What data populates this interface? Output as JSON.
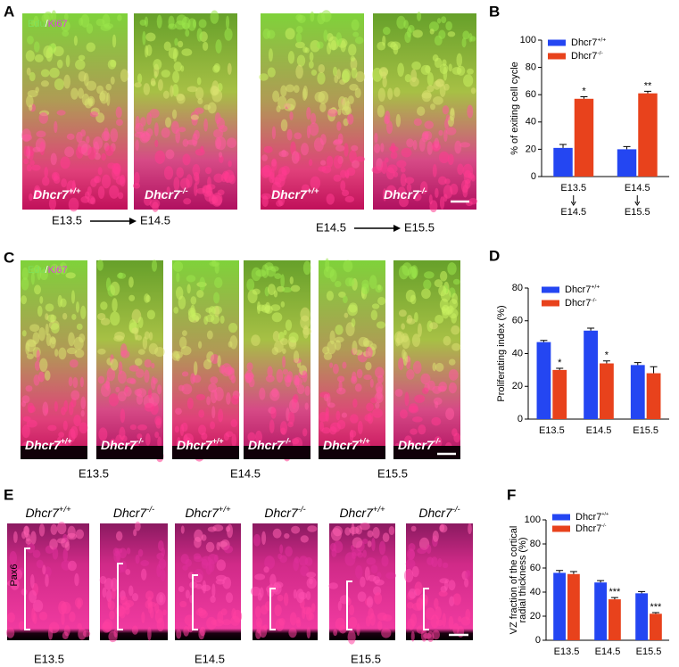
{
  "panels": {
    "A": {
      "label": "A",
      "stain": {
        "a": "Edu",
        "sep": "/",
        "b": "Ki67"
      },
      "images": [
        {
          "name": "Dhcr7",
          "sup": "+/+"
        },
        {
          "name": "Dhcr7",
          "sup": "-/-"
        },
        {
          "name": "Dhcr7",
          "sup": "+/+"
        },
        {
          "name": "Dhcr7",
          "sup": "-/-"
        }
      ],
      "transitions": [
        {
          "from": "E13.5",
          "to": "E14.5"
        },
        {
          "from": "E14.5",
          "to": "E15.5"
        }
      ]
    },
    "B": {
      "label": "B"
    },
    "C": {
      "label": "C",
      "stain": {
        "a": "Edu",
        "sep": "/",
        "b": "Ki67"
      },
      "images": [
        {
          "name": "Dhcr7",
          "sup": "+/+"
        },
        {
          "name": "Dhcr7",
          "sup": "-/-"
        },
        {
          "name": "Dhcr7",
          "sup": "+/+"
        },
        {
          "name": "Dhcr7",
          "sup": "-/-"
        },
        {
          "name": "Dhcr7",
          "sup": "+/+"
        },
        {
          "name": "Dhcr7",
          "sup": "-/-"
        }
      ],
      "stages": [
        "E13.5",
        "E14.5",
        "E15.5"
      ]
    },
    "D": {
      "label": "D"
    },
    "E": {
      "label": "E",
      "stain": "Pax6",
      "images": [
        {
          "name": "Dhcr7",
          "sup": "+/+"
        },
        {
          "name": "Dhcr7",
          "sup": "-/-"
        },
        {
          "name": "Dhcr7",
          "sup": "+/+"
        },
        {
          "name": "Dhcr7",
          "sup": "-/-"
        },
        {
          "name": "Dhcr7",
          "sup": "+/+"
        },
        {
          "name": "Dhcr7",
          "sup": "-/-"
        }
      ],
      "stages": [
        "E13.5",
        "E14.5",
        "E15.5"
      ]
    },
    "F": {
      "label": "F"
    }
  },
  "chart_data": [
    {
      "type": "bar",
      "ylabel": [
        "% of exiting cell cycle"
      ],
      "categories": [
        "E13.5",
        "E14.5"
      ],
      "category_ends": [
        "E14.5",
        "E15.5"
      ],
      "ylim": [
        0,
        100
      ],
      "yticks": [
        0,
        20,
        40,
        60,
        80,
        100
      ],
      "series": [
        {
          "name": "Dhcr7",
          "name_sup": "+/+",
          "color": "#2446f2",
          "values": [
            21,
            20
          ],
          "errors": [
            2.5,
            2
          ]
        },
        {
          "name": "Dhcr7",
          "name_sup": "-/-",
          "color": "#e8421c",
          "values": [
            57,
            61
          ],
          "errors": [
            1.5,
            1.5
          ],
          "significance": [
            "*",
            "**"
          ]
        }
      ]
    },
    {
      "type": "bar",
      "ylabel": [
        "Proliferating index (%)"
      ],
      "categories": [
        "E13.5",
        "E14.5",
        "E15.5"
      ],
      "ylim": [
        0,
        80
      ],
      "yticks": [
        0,
        20,
        40,
        60,
        80
      ],
      "series": [
        {
          "name": "Dhcr7",
          "name_sup": "+/+",
          "color": "#2446f2",
          "values": [
            47,
            54,
            33
          ],
          "errors": [
            1,
            1.5,
            1.5
          ]
        },
        {
          "name": "Dhcr7",
          "name_sup": "-/-",
          "color": "#e8421c",
          "values": [
            30,
            34,
            28
          ],
          "errors": [
            1,
            1.5,
            4
          ],
          "significance": [
            "*",
            "*",
            null
          ]
        }
      ]
    },
    {
      "type": "bar",
      "ylabel": [
        "VZ fraction of the cortical",
        "radial thickness (%)"
      ],
      "categories": [
        "E13.5",
        "E14.5",
        "E15.5"
      ],
      "ylim": [
        0,
        100
      ],
      "yticks": [
        0,
        20,
        40,
        60,
        80,
        100
      ],
      "series": [
        {
          "name": "Dhcr7",
          "name_sup": "+/+",
          "color": "#2446f2",
          "values": [
            56,
            48,
            39
          ],
          "errors": [
            2,
            1.5,
            1.5
          ]
        },
        {
          "name": "Dhcr7",
          "name_sup": "-/-",
          "color": "#e8421c",
          "values": [
            55,
            34,
            22
          ],
          "errors": [
            2,
            1.5,
            1
          ],
          "significance": [
            null,
            "***",
            "***"
          ]
        }
      ]
    }
  ]
}
